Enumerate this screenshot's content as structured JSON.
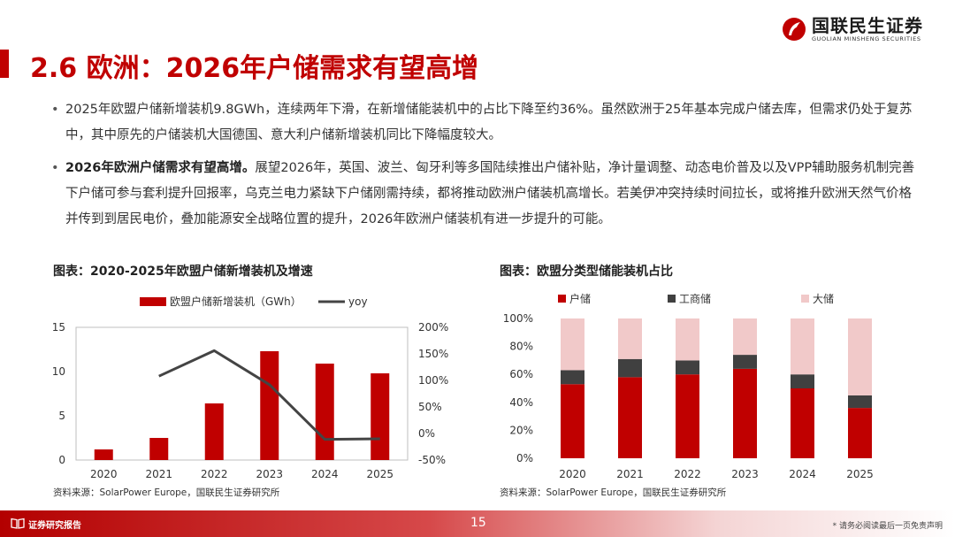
{
  "header": {
    "logo_cn": "国联民生证券",
    "logo_en": "GUOLIAN MINSHENG SECURITIES",
    "brand_color": "#c00000"
  },
  "page_title": "2.6 欧洲：2026年户储需求有望高增",
  "bullets": [
    {
      "bold": "",
      "text": "2025年欧盟户储新增装机9.8GWh，连续两年下滑，在新增储能装机中的占比下降至约36%。虽然欧洲于25年基本完成户储去库，但需求仍处于复苏中，其中原先的户储装机大国德国、意大利户储新增装机同比下降幅度较大。"
    },
    {
      "bold": "2026年欧洲户储需求有望高增。",
      "text": "展望2026年，英国、波兰、匈牙利等多国陆续推出户储补贴，净计量调整、动态电价普及以及VPP辅助服务机制完善下户储可参与套利提升回报率，乌克兰电力紧缺下户储刚需持续，都将推动欧洲户储装机高增长。若美伊冲突持续时间拉长，或将推升欧洲天然气价格并传到到居民电价，叠加能源安全战略位置的提升，2026年欧洲户储装机有进一步提升的可能。"
    }
  ],
  "charts": [
    {
      "title": "图表：2020-2025年欧盟户储新增装机及增速",
      "source": "资料来源：SolarPower Europe，国联民生证券研究所"
    },
    {
      "title": "图表：欧盟分类型储能装机占比",
      "source": "资料来源：SolarPower Europe，国联民生证券研究所"
    }
  ],
  "chart_data": [
    {
      "type": "bar",
      "title": "图表：2020-2025年欧盟户储新增装机及增速",
      "categories": [
        "2020",
        "2021",
        "2022",
        "2023",
        "2024",
        "2025"
      ],
      "series": [
        {
          "name": "欧盟户储新增装机（GWh）",
          "type": "bar",
          "axis": "left",
          "color": "#c00000",
          "values": [
            1.2,
            2.5,
            6.4,
            12.3,
            10.9,
            9.8
          ]
        },
        {
          "name": "yoy",
          "type": "line",
          "axis": "right",
          "color": "#444444",
          "values": [
            null,
            108,
            156,
            92,
            -11,
            -10
          ]
        }
      ],
      "ylim": [
        0,
        15
      ],
      "yticks": [
        0,
        5,
        10,
        15
      ],
      "y2lim": [
        -50,
        200
      ],
      "y2ticks": [
        "-50%",
        "0%",
        "50%",
        "100%",
        "150%",
        "200%"
      ],
      "legend": "top"
    },
    {
      "type": "bar",
      "stacked": true,
      "title": "图表：欧盟分类型储能装机占比",
      "categories": [
        "2020",
        "2021",
        "2022",
        "2023",
        "2024",
        "2025"
      ],
      "series": [
        {
          "name": "户储",
          "color": "#c00000",
          "values": [
            53,
            58,
            60,
            64,
            50,
            36
          ]
        },
        {
          "name": "工商储",
          "color": "#404040",
          "values": [
            10,
            13,
            10,
            10,
            10,
            9
          ]
        },
        {
          "name": "大储",
          "color": "#f1c9c9",
          "values": [
            37,
            29,
            30,
            26,
            40,
            55
          ]
        }
      ],
      "ylim": [
        0,
        100
      ],
      "yticks": [
        "0%",
        "20%",
        "40%",
        "60%",
        "80%",
        "100%"
      ],
      "legend": "top"
    }
  ],
  "footer": {
    "label": "证券研究报告",
    "page": "15",
    "disclaimer": "* 请务必阅读最后一页免责声明"
  }
}
